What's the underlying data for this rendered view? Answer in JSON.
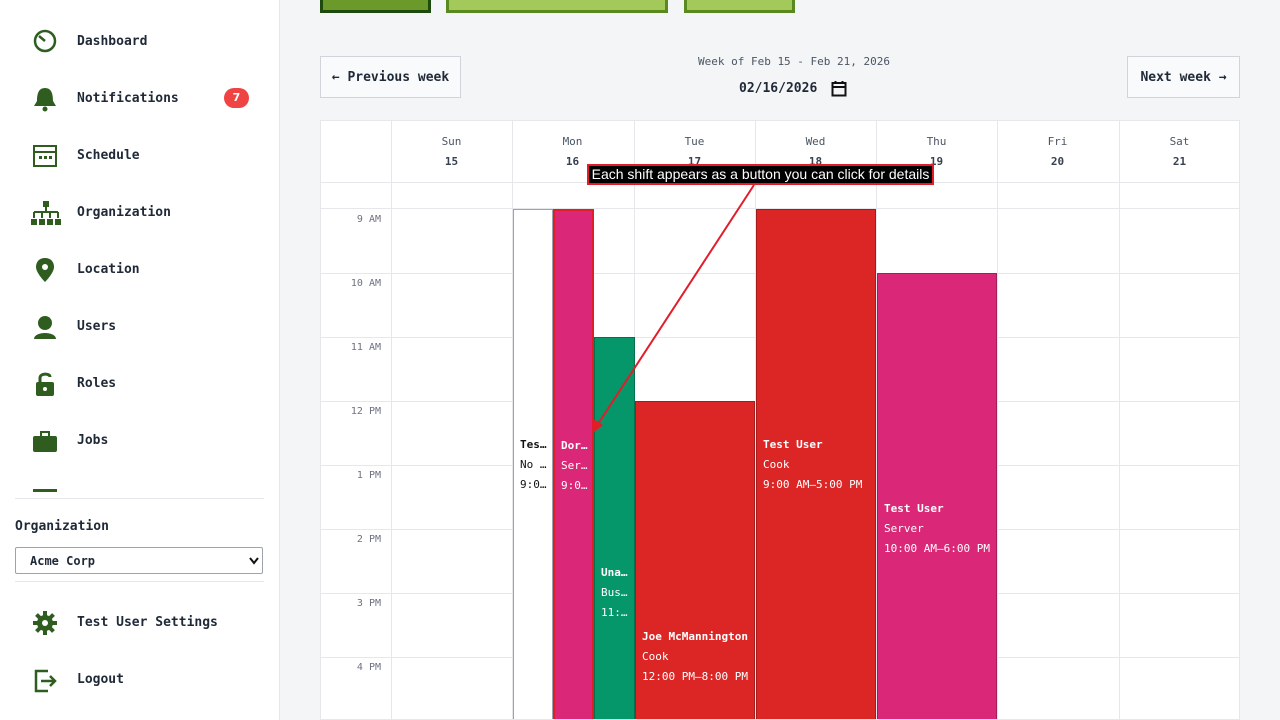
{
  "sidebar": {
    "nav": [
      {
        "label": "Dashboard"
      },
      {
        "label": "Notifications",
        "badge": 7
      },
      {
        "label": "Schedule"
      },
      {
        "label": "Organization"
      },
      {
        "label": "Location"
      },
      {
        "label": "Users"
      },
      {
        "label": "Roles"
      },
      {
        "label": "Jobs"
      }
    ],
    "organization_label": "Organization",
    "organization_select": "Acme Corp",
    "settings": "Test User Settings",
    "logout": "Logout"
  },
  "header": {
    "prev": "← Previous week",
    "week_label": "Week of Feb 15 - Feb 21, 2026",
    "date": "02/16/2026",
    "next": "Next week →"
  },
  "calendar": {
    "days": [
      {
        "name": "Sun",
        "date": 15
      },
      {
        "name": "Mon",
        "date": 16
      },
      {
        "name": "Tue",
        "date": 17
      },
      {
        "name": "Wed",
        "date": 18
      },
      {
        "name": "Thu",
        "date": 19
      },
      {
        "name": "Fri",
        "date": 20
      },
      {
        "name": "Sat",
        "date": 21
      }
    ],
    "hours": [
      "9 AM",
      "10 AM",
      "11 AM",
      "12 PM",
      "1 PM",
      "2 PM",
      "3 PM",
      "4 PM"
    ],
    "shifts": [
      {
        "lines": [
          "Tes…",
          "No …",
          "9:0…"
        ],
        "color": "#ffffff"
      },
      {
        "lines": [
          "Dor…",
          "Ser…",
          "9:0…"
        ],
        "color": "#db2777"
      },
      {
        "lines": [
          "Una…",
          "Bus…",
          "11:…"
        ],
        "color": "#059669"
      },
      {
        "lines": [
          "Joe McMannington",
          "Cook",
          "12:00 PM–8:00 PM"
        ],
        "color": "#dc2626"
      },
      {
        "lines": [
          "Test User",
          "Cook",
          "9:00 AM–5:00 PM"
        ],
        "color": "#dc2626"
      },
      {
        "lines": [
          "Test User",
          "Server",
          "10:00 AM–6:00 PM"
        ],
        "color": "#db2777"
      }
    ]
  },
  "annotation": "Each shift appears as a button you can click for details"
}
